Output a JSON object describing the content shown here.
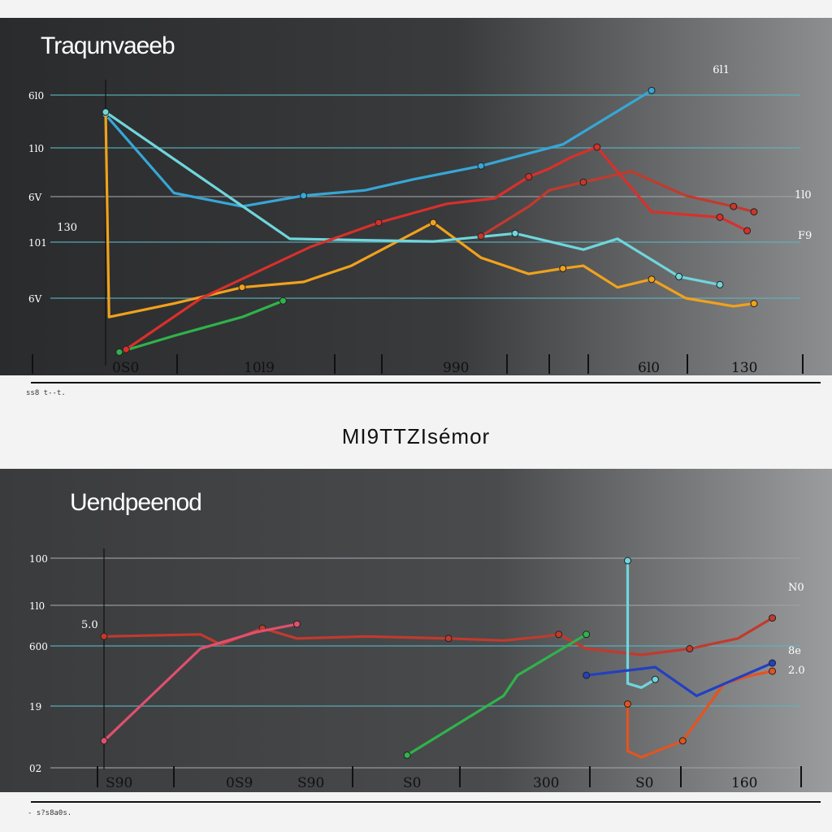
{
  "middle_title": "MI9TTZIsémor",
  "captions": [
    "ss8 t--t.",
    "- s?s8a0s."
  ],
  "colors": {
    "blue": "#36a7d6",
    "orange": "#f0a21c",
    "green": "#2fb34b",
    "red": "#d8302b",
    "dark_red": "#c23a2d",
    "cyan": "#6fd6dc",
    "orange_red": "#e35420",
    "pink": "#e0506e",
    "navy": "#2340c0",
    "grid_cyan": "#5bb6c0",
    "grid_gray": "#9aa3a8"
  },
  "chart_data": [
    {
      "type": "line",
      "title": "Traqunvaeeb",
      "y_ticks": [
        "6l0",
        "1l0",
        "6V",
        "101",
        "6V"
      ],
      "y_side_labels": [
        "130",
        "6l1",
        "1l0",
        "F9"
      ],
      "x_ticks": [
        "0S0",
        "10l9",
        "990",
        "6l0",
        "130"
      ],
      "x_range": [
        0,
        100
      ],
      "y_range": [
        0,
        100
      ],
      "grid": true,
      "series": [
        {
          "color": "blue",
          "points": [
            [
              0,
              90
            ],
            [
              10,
              61
            ],
            [
              20,
              56
            ],
            [
              29,
              60
            ],
            [
              38,
              62
            ],
            [
              45,
              66
            ],
            [
              55,
              71
            ],
            [
              67,
              79
            ],
            [
              80,
              99
            ]
          ]
        },
        {
          "color": "orange",
          "points": [
            [
              0,
              91
            ],
            [
              0.5,
              15
            ],
            [
              10,
              20
            ],
            [
              20,
              26
            ],
            [
              29,
              28
            ],
            [
              36,
              34
            ],
            [
              48,
              50
            ],
            [
              55,
              37
            ],
            [
              62,
              31
            ],
            [
              67,
              33
            ],
            [
              70,
              34
            ],
            [
              75,
              26
            ],
            [
              80,
              29
            ],
            [
              85,
              22
            ],
            [
              92,
              19
            ],
            [
              95,
              20
            ]
          ]
        },
        {
          "color": "cyan",
          "points": [
            [
              0,
              91
            ],
            [
              27,
              44
            ],
            [
              48,
              43
            ],
            [
              60,
              46
            ],
            [
              70,
              40
            ],
            [
              75,
              44
            ],
            [
              84,
              30
            ],
            [
              90,
              27
            ]
          ]
        },
        {
          "color": "green",
          "points": [
            [
              2,
              2
            ],
            [
              10,
              8
            ],
            [
              20,
              15
            ],
            [
              26,
              21
            ]
          ]
        },
        {
          "color": "red",
          "points": [
            [
              3,
              3
            ],
            [
              14,
              22
            ],
            [
              30,
              41
            ],
            [
              40,
              50
            ],
            [
              50,
              57
            ],
            [
              57,
              59
            ],
            [
              62,
              67
            ],
            [
              65,
              70
            ],
            [
              68,
              74
            ],
            [
              72,
              78
            ],
            [
              74,
              72
            ],
            [
              80,
              54
            ],
            [
              90,
              52
            ],
            [
              94,
              47
            ]
          ]
        },
        {
          "color": "dark_red",
          "points": [
            [
              55,
              45
            ],
            [
              62,
              56
            ],
            [
              65,
              62
            ],
            [
              70,
              65
            ],
            [
              77,
              69
            ],
            [
              85,
              60
            ],
            [
              92,
              56
            ],
            [
              95,
              54
            ]
          ]
        }
      ]
    },
    {
      "type": "line",
      "title": "Uendpeenod",
      "y_ticks": [
        "100",
        "1l0",
        "600",
        "19",
        "02"
      ],
      "y_side_labels": [
        "5.0",
        "N0",
        "8e",
        "2.0"
      ],
      "x_ticks": [
        "S90",
        "0S9",
        "S90",
        "S0",
        "300",
        "S0",
        "160"
      ],
      "x_range": [
        0,
        100
      ],
      "y_range": [
        0,
        100
      ],
      "grid": true,
      "series": [
        {
          "color": "dark_red",
          "points": [
            [
              0,
              61
            ],
            [
              14,
              62
            ],
            [
              17,
              57
            ],
            [
              23,
              65
            ],
            [
              28,
              60
            ],
            [
              38,
              61
            ],
            [
              50,
              60
            ],
            [
              58,
              59
            ],
            [
              64,
              61
            ],
            [
              66,
              62
            ],
            [
              70,
              55
            ],
            [
              78,
              52
            ],
            [
              85,
              55
            ],
            [
              92,
              60
            ],
            [
              97,
              70
            ]
          ]
        },
        {
          "color": "pink",
          "points": [
            [
              0,
              10
            ],
            [
              14,
              55
            ],
            [
              22,
              63
            ],
            [
              28,
              67
            ]
          ]
        },
        {
          "color": "green",
          "points": [
            [
              44,
              3
            ],
            [
              58,
              32
            ],
            [
              60,
              42
            ],
            [
              70,
              62
            ]
          ]
        },
        {
          "color": "cyan",
          "points": [
            [
              76,
              98
            ],
            [
              76,
              38
            ],
            [
              78,
              36
            ],
            [
              80,
              40
            ]
          ]
        },
        {
          "color": "orange_red",
          "points": [
            [
              76,
              28
            ],
            [
              76,
              5
            ],
            [
              78,
              2
            ],
            [
              84,
              10
            ],
            [
              90,
              38
            ],
            [
              94,
              42
            ],
            [
              97,
              44
            ]
          ]
        },
        {
          "color": "navy",
          "points": [
            [
              70,
              42
            ],
            [
              80,
              46
            ],
            [
              86,
              32
            ],
            [
              97,
              48
            ]
          ]
        }
      ]
    }
  ]
}
